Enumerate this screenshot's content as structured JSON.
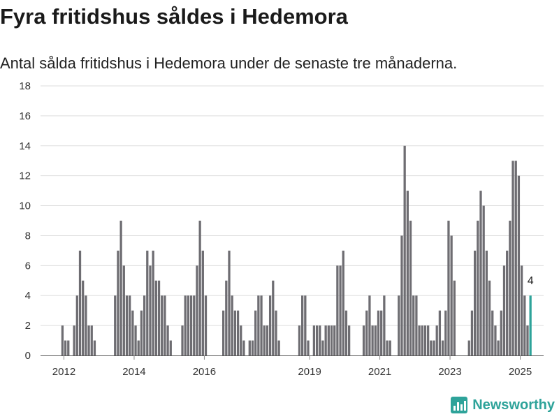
{
  "title": "Fyra fritidshus såldes i Hedemora",
  "subtitle": "Antal sålda fritidshus i Hedemora under de senaste tre månaderna.",
  "brand": "Newsworthy",
  "colors": {
    "bar": "#6e6d72",
    "highlight": "#2ea39a",
    "grid": "#dddddd",
    "axis": "#888888"
  },
  "chart_data": {
    "type": "bar",
    "ylim": [
      0,
      18
    ],
    "yticks": [
      0,
      2,
      4,
      6,
      8,
      10,
      12,
      14,
      16,
      18
    ],
    "xticks": [
      "2012",
      "2014",
      "2016",
      "2019",
      "2021",
      "2023",
      "2025"
    ],
    "xlim": [
      "2011-05",
      "2025-08"
    ],
    "highlight_label": "4",
    "series": [
      {
        "x": [
          "2011-12",
          "2012-01",
          "2012-02",
          "2012-03",
          "2012-04",
          "2012-05",
          "2012-06",
          "2012-07",
          "2012-08",
          "2012-09",
          "2012-10",
          "2012-11",
          "2012-12",
          "2013-01",
          "2013-02",
          "2013-03",
          "2013-04",
          "2013-05",
          "2013-06",
          "2013-07",
          "2013-08",
          "2013-09",
          "2013-10",
          "2013-11",
          "2013-12",
          "2014-01",
          "2014-02",
          "2014-03",
          "2014-04",
          "2014-05",
          "2014-06",
          "2014-07",
          "2014-08",
          "2014-09",
          "2014-10",
          "2014-11",
          "2014-12",
          "2015-01",
          "2015-02",
          "2015-03",
          "2015-04",
          "2015-05",
          "2015-06",
          "2015-07",
          "2015-08",
          "2015-09",
          "2015-10",
          "2015-11",
          "2015-12",
          "2016-01",
          "2016-02",
          "2016-03",
          "2016-04",
          "2016-05",
          "2016-06",
          "2016-07",
          "2016-08",
          "2016-09",
          "2016-10",
          "2016-11",
          "2016-12",
          "2017-01",
          "2017-02",
          "2017-03",
          "2017-04",
          "2017-05",
          "2017-06",
          "2017-07",
          "2017-08",
          "2017-09",
          "2017-10",
          "2017-11",
          "2017-12",
          "2018-01",
          "2018-02",
          "2018-03",
          "2018-04",
          "2018-05",
          "2018-06",
          "2018-07",
          "2018-08",
          "2018-09",
          "2018-10",
          "2018-11",
          "2018-12",
          "2019-01",
          "2019-02",
          "2019-03",
          "2019-04",
          "2019-05",
          "2019-06",
          "2019-07",
          "2019-08",
          "2019-09",
          "2019-10",
          "2019-11",
          "2019-12",
          "2020-01",
          "2020-02",
          "2020-03",
          "2020-04",
          "2020-05",
          "2020-06",
          "2020-07",
          "2020-08",
          "2020-09",
          "2020-10",
          "2020-11",
          "2020-12",
          "2021-01",
          "2021-02",
          "2021-03",
          "2021-04",
          "2021-05",
          "2021-06",
          "2021-07",
          "2021-08",
          "2021-09",
          "2021-10",
          "2021-11",
          "2021-12",
          "2022-01",
          "2022-02",
          "2022-03",
          "2022-04",
          "2022-05",
          "2022-06",
          "2022-07",
          "2022-08",
          "2022-09",
          "2022-10",
          "2022-11",
          "2022-12",
          "2023-01",
          "2023-02",
          "2023-03",
          "2023-04",
          "2023-05",
          "2023-06",
          "2023-07",
          "2023-08",
          "2023-09",
          "2023-10",
          "2023-11",
          "2023-12",
          "2024-01",
          "2024-02",
          "2024-03",
          "2024-04",
          "2024-05",
          "2024-06",
          "2024-07",
          "2024-08",
          "2024-09",
          "2024-10",
          "2024-11",
          "2024-12",
          "2025-01",
          "2025-02",
          "2025-03"
        ],
        "values": [
          2,
          1,
          1,
          0,
          2,
          4,
          7,
          5,
          4,
          2,
          2,
          1,
          0,
          0,
          0,
          0,
          0,
          0,
          4,
          7,
          9,
          6,
          4,
          4,
          3,
          2,
          1,
          3,
          4,
          7,
          6,
          7,
          5,
          5,
          4,
          4,
          2,
          1,
          0,
          0,
          0,
          2,
          4,
          4,
          4,
          4,
          6,
          9,
          7,
          4,
          0,
          0,
          0,
          0,
          0,
          3,
          5,
          7,
          4,
          3,
          3,
          2,
          1,
          0,
          1,
          1,
          3,
          4,
          4,
          2,
          2,
          4,
          5,
          3,
          1,
          0,
          0,
          0,
          0,
          0,
          0,
          2,
          4,
          4,
          1,
          0,
          2,
          2,
          2,
          1,
          2,
          2,
          2,
          2,
          6,
          6,
          7,
          3,
          2,
          0,
          0,
          0,
          0,
          2,
          3,
          4,
          2,
          2,
          3,
          3,
          4,
          1,
          1,
          0,
          0,
          4,
          8,
          14,
          11,
          9,
          4,
          4,
          2,
          2,
          2,
          2,
          1,
          1,
          2,
          3,
          1,
          3,
          9,
          8,
          5,
          0,
          0,
          0,
          0,
          1,
          3,
          7,
          9,
          11,
          10,
          7,
          5,
          3,
          2,
          1,
          3,
          6,
          7,
          9,
          13,
          13,
          12,
          6,
          4,
          2
        ],
        "highlight_x": "2025-04",
        "highlight_value": 4
      }
    ]
  }
}
